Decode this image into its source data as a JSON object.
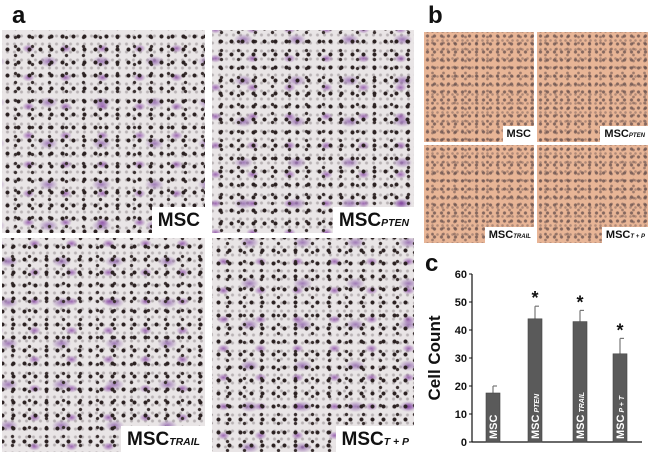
{
  "panels": {
    "a": {
      "label": "a",
      "images": [
        {
          "main": "MSC",
          "sub": ""
        },
        {
          "main": "MSC",
          "sub": "PTEN"
        },
        {
          "main": "MSC",
          "sub": "TRAIL"
        },
        {
          "main": "MSC",
          "sub": "T + P"
        }
      ]
    },
    "b": {
      "label": "b",
      "images": [
        {
          "main": "MSC",
          "sub": ""
        },
        {
          "main": "MSC",
          "sub": "PTEN"
        },
        {
          "main": "MSC",
          "sub": "TRAIL"
        },
        {
          "main": "MSC",
          "sub": "T + P"
        }
      ]
    },
    "c": {
      "label": "c"
    }
  },
  "colors": {
    "bar": "#5a5a5a",
    "stain_a": "#8a4fa8",
    "background_b": "#e8b596"
  },
  "chart_data": {
    "type": "bar",
    "title": "",
    "ylabel": "Cell Count",
    "xlabel": "",
    "ylim": [
      0,
      60
    ],
    "yticks": [
      "0",
      "10",
      "20",
      "30",
      "40",
      "50",
      "60"
    ],
    "categories": [
      {
        "main": "MSC",
        "sub": ""
      },
      {
        "main": "MSC",
        "sub": "PTEN"
      },
      {
        "main": "MSC",
        "sub": "TRAIL"
      },
      {
        "main": "MSC",
        "sub": "P + T"
      }
    ],
    "values": [
      17.5,
      44,
      43,
      31.5
    ],
    "errors": [
      2.5,
      4.5,
      4,
      5.5
    ],
    "significance": [
      "",
      "*",
      "*",
      "*"
    ],
    "grid": false
  }
}
